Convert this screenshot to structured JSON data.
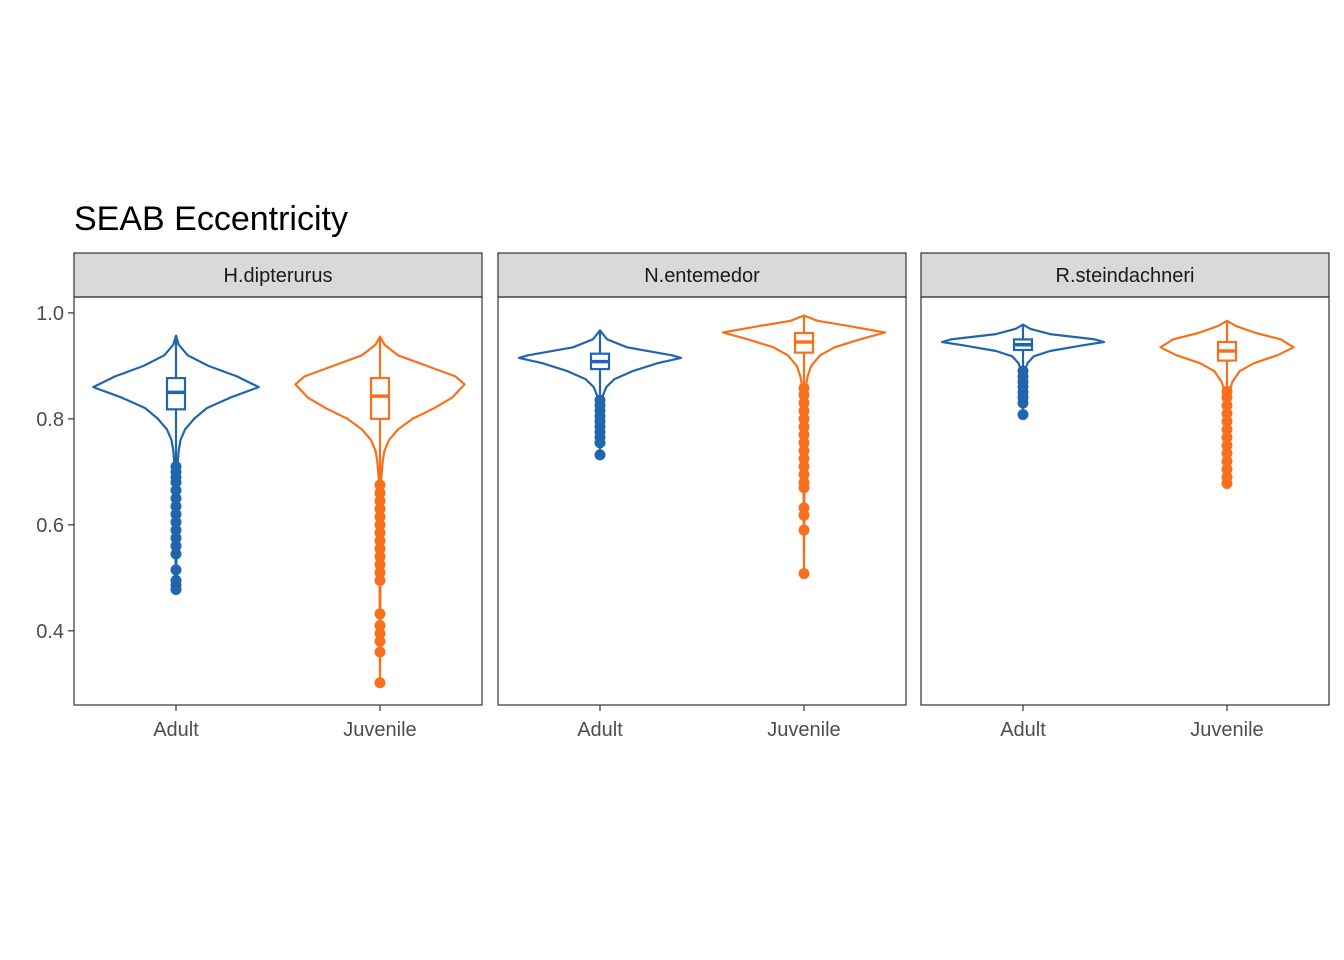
{
  "chart_data": {
    "type": "violin",
    "title": "SEAB Eccentricity",
    "xlabel": "",
    "ylabel": "",
    "ylim": [
      0.26,
      1.03
    ],
    "yticks": [
      0.4,
      0.6,
      0.8,
      1.0
    ],
    "ytick_labels": [
      "0.4",
      "0.6",
      "0.8",
      "1.0"
    ],
    "categories": [
      "Adult",
      "Juvenile"
    ],
    "colors": {
      "Adult": "#2166ac",
      "Juvenile": "#f8701c"
    },
    "grid": false,
    "legend": "none",
    "facets": [
      {
        "label": "H.dipterurus",
        "groups": [
          {
            "name": "Adult",
            "violin": [
              [
                0.957,
                0.0
              ],
              [
                0.94,
                0.03
              ],
              [
                0.92,
                0.13
              ],
              [
                0.9,
                0.36
              ],
              [
                0.88,
                0.68
              ],
              [
                0.86,
                0.92
              ],
              [
                0.84,
                0.6
              ],
              [
                0.82,
                0.34
              ],
              [
                0.8,
                0.2
              ],
              [
                0.78,
                0.1
              ],
              [
                0.76,
                0.05
              ],
              [
                0.74,
                0.03
              ],
              [
                0.72,
                0.02
              ],
              [
                0.7,
                0.012
              ],
              [
                0.6,
                0.006
              ],
              [
                0.5,
                0.004
              ],
              [
                0.478,
                0.0
              ]
            ],
            "box": {
              "q1": 0.818,
              "median": 0.85,
              "q3": 0.877,
              "lower": 0.72,
              "upper": 0.957
            },
            "outliers": [
              0.478,
              0.486,
              0.495,
              0.515,
              0.545,
              0.56,
              0.575,
              0.59,
              0.605,
              0.62,
              0.635,
              0.65,
              0.665,
              0.68,
              0.69,
              0.7,
              0.71
            ]
          },
          {
            "name": "Juvenile",
            "violin": [
              [
                0.955,
                0.0
              ],
              [
                0.94,
                0.05
              ],
              [
                0.92,
                0.2
              ],
              [
                0.9,
                0.52
              ],
              [
                0.88,
                0.84
              ],
              [
                0.865,
                0.94
              ],
              [
                0.84,
                0.8
              ],
              [
                0.82,
                0.6
              ],
              [
                0.8,
                0.36
              ],
              [
                0.78,
                0.2
              ],
              [
                0.76,
                0.1
              ],
              [
                0.74,
                0.05
              ],
              [
                0.72,
                0.03
              ],
              [
                0.7,
                0.02
              ],
              [
                0.68,
                0.01
              ],
              [
                0.6,
                0.006
              ],
              [
                0.5,
                0.004
              ],
              [
                0.4,
                0.003
              ],
              [
                0.3,
                0.0
              ]
            ],
            "box": {
              "q1": 0.8,
              "median": 0.843,
              "q3": 0.877,
              "lower": 0.68,
              "upper": 0.955
            },
            "outliers": [
              0.302,
              0.36,
              0.38,
              0.395,
              0.41,
              0.432,
              0.495,
              0.51,
              0.525,
              0.54,
              0.555,
              0.57,
              0.585,
              0.6,
              0.615,
              0.63,
              0.645,
              0.66,
              0.675
            ]
          }
        ]
      },
      {
        "label": "N.entemedor",
        "groups": [
          {
            "name": "Adult",
            "violin": [
              [
                0.967,
                0.0
              ],
              [
                0.95,
                0.08
              ],
              [
                0.935,
                0.3
              ],
              [
                0.92,
                0.8
              ],
              [
                0.915,
                0.9
              ],
              [
                0.905,
                0.64
              ],
              [
                0.89,
                0.36
              ],
              [
                0.875,
                0.16
              ],
              [
                0.86,
                0.07
              ],
              [
                0.845,
                0.035
              ],
              [
                0.83,
                0.02
              ],
              [
                0.8,
                0.01
              ],
              [
                0.76,
                0.005
              ],
              [
                0.732,
                0.0
              ]
            ],
            "box": {
              "q1": 0.894,
              "median": 0.908,
              "q3": 0.923,
              "lower": 0.84,
              "upper": 0.967
            },
            "outliers": [
              0.732,
              0.755,
              0.765,
              0.775,
              0.785,
              0.795,
              0.805,
              0.815,
              0.825,
              0.835
            ]
          },
          {
            "name": "Juvenile",
            "violin": [
              [
                0.995,
                0.0
              ],
              [
                0.985,
                0.15
              ],
              [
                0.975,
                0.5
              ],
              [
                0.963,
                0.9
              ],
              [
                0.95,
                0.62
              ],
              [
                0.935,
                0.34
              ],
              [
                0.92,
                0.18
              ],
              [
                0.9,
                0.08
              ],
              [
                0.88,
                0.04
              ],
              [
                0.86,
                0.02
              ],
              [
                0.8,
                0.01
              ],
              [
                0.7,
                0.005
              ],
              [
                0.6,
                0.003
              ],
              [
                0.508,
                0.0
              ]
            ],
            "box": {
              "q1": 0.925,
              "median": 0.945,
              "q3": 0.962,
              "lower": 0.865,
              "upper": 0.995
            },
            "outliers": [
              0.508,
              0.59,
              0.618,
              0.632,
              0.67,
              0.68,
              0.695,
              0.71,
              0.725,
              0.74,
              0.755,
              0.77,
              0.785,
              0.8,
              0.815,
              0.83,
              0.845,
              0.858
            ]
          }
        ]
      },
      {
        "label": "R.steindachneri",
        "groups": [
          {
            "name": "Adult",
            "violin": [
              [
                0.978,
                0.0
              ],
              [
                0.97,
                0.08
              ],
              [
                0.96,
                0.3
              ],
              [
                0.95,
                0.8
              ],
              [
                0.945,
                0.9
              ],
              [
                0.938,
                0.64
              ],
              [
                0.928,
                0.3
              ],
              [
                0.918,
                0.12
              ],
              [
                0.905,
                0.05
              ],
              [
                0.89,
                0.02
              ],
              [
                0.87,
                0.01
              ],
              [
                0.84,
                0.005
              ],
              [
                0.808,
                0.0
              ]
            ],
            "box": {
              "q1": 0.93,
              "median": 0.94,
              "q3": 0.95,
              "lower": 0.895,
              "upper": 0.978
            },
            "outliers": [
              0.808,
              0.83,
              0.84,
              0.85,
              0.86,
              0.87,
              0.88,
              0.89
            ]
          },
          {
            "name": "Juvenile",
            "violin": [
              [
                0.985,
                0.0
              ],
              [
                0.975,
                0.1
              ],
              [
                0.962,
                0.32
              ],
              [
                0.95,
                0.6
              ],
              [
                0.935,
                0.74
              ],
              [
                0.92,
                0.56
              ],
              [
                0.905,
                0.3
              ],
              [
                0.89,
                0.14
              ],
              [
                0.87,
                0.06
              ],
              [
                0.85,
                0.025
              ],
              [
                0.8,
                0.01
              ],
              [
                0.7,
                0.004
              ],
              [
                0.678,
                0.0
              ]
            ],
            "box": {
              "q1": 0.91,
              "median": 0.928,
              "q3": 0.945,
              "lower": 0.86,
              "upper": 0.985
            },
            "outliers": [
              0.678,
              0.69,
              0.705,
              0.72,
              0.735,
              0.75,
              0.765,
              0.78,
              0.795,
              0.81,
              0.825,
              0.84,
              0.852
            ]
          }
        ]
      }
    ]
  }
}
